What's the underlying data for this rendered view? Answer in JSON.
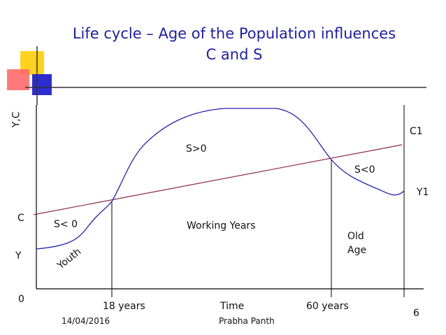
{
  "slide": {
    "title_line1": "Life cycle – Age of the Population influences",
    "title_line2": "C and S"
  },
  "axes": {
    "y_label": "Y,C",
    "x_label": "Time",
    "origin_label": "0"
  },
  "labels": {
    "C": "C",
    "Y": "Y",
    "C1": "C1",
    "Y1": "Y1",
    "s_less_0_left": "S< 0",
    "s_greater_0": "S>0",
    "s_less_0_right": "S<0",
    "working_years": "Working Years",
    "old": "Old",
    "age": "Age",
    "youth": "Youth",
    "age_18": "18 years",
    "age_60": "60 years"
  },
  "footer": {
    "date": "14/04/2016",
    "author": "Prabha Panth",
    "page_number": "6"
  },
  "colors": {
    "title": "#1f1f9e",
    "income_curve": "#2323a8",
    "consumption_line": "#8b2a4a",
    "axis": "#000000",
    "deco_yellow": "#ffd21f",
    "deco_red": "#ff6060",
    "deco_blue": "#2d2dcf"
  }
}
